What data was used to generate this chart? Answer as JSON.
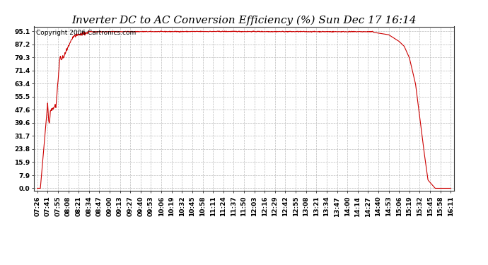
{
  "title": "Inverter DC to AC Conversion Efficiency (%) Sun Dec 17 16:14",
  "copyright": "Copyright 2006 Cartronics.com",
  "background_color": "#ffffff",
  "plot_background": "#ffffff",
  "line_color": "#cc0000",
  "line_width": 0.8,
  "yticks": [
    0.0,
    7.9,
    15.9,
    23.8,
    31.7,
    39.6,
    47.6,
    55.5,
    63.4,
    71.4,
    79.3,
    87.2,
    95.1
  ],
  "ylim": [
    -1.5,
    98
  ],
  "xtick_labels": [
    "07:26",
    "07:41",
    "07:55",
    "08:08",
    "08:21",
    "08:34",
    "08:47",
    "09:00",
    "09:13",
    "09:27",
    "09:40",
    "09:53",
    "10:06",
    "10:19",
    "10:32",
    "10:45",
    "10:58",
    "11:11",
    "11:24",
    "11:37",
    "11:50",
    "12:03",
    "12:16",
    "12:29",
    "12:42",
    "12:55",
    "13:08",
    "13:21",
    "13:34",
    "13:47",
    "14:00",
    "14:14",
    "14:27",
    "14:40",
    "14:53",
    "15:06",
    "15:19",
    "15:32",
    "15:45",
    "15:58",
    "16:11"
  ],
  "title_fontsize": 11,
  "copyright_fontsize": 6.5,
  "tick_fontsize": 6.5,
  "grid_color": "#bbbbbb",
  "grid_linestyle": "--",
  "grid_linewidth": 0.5
}
